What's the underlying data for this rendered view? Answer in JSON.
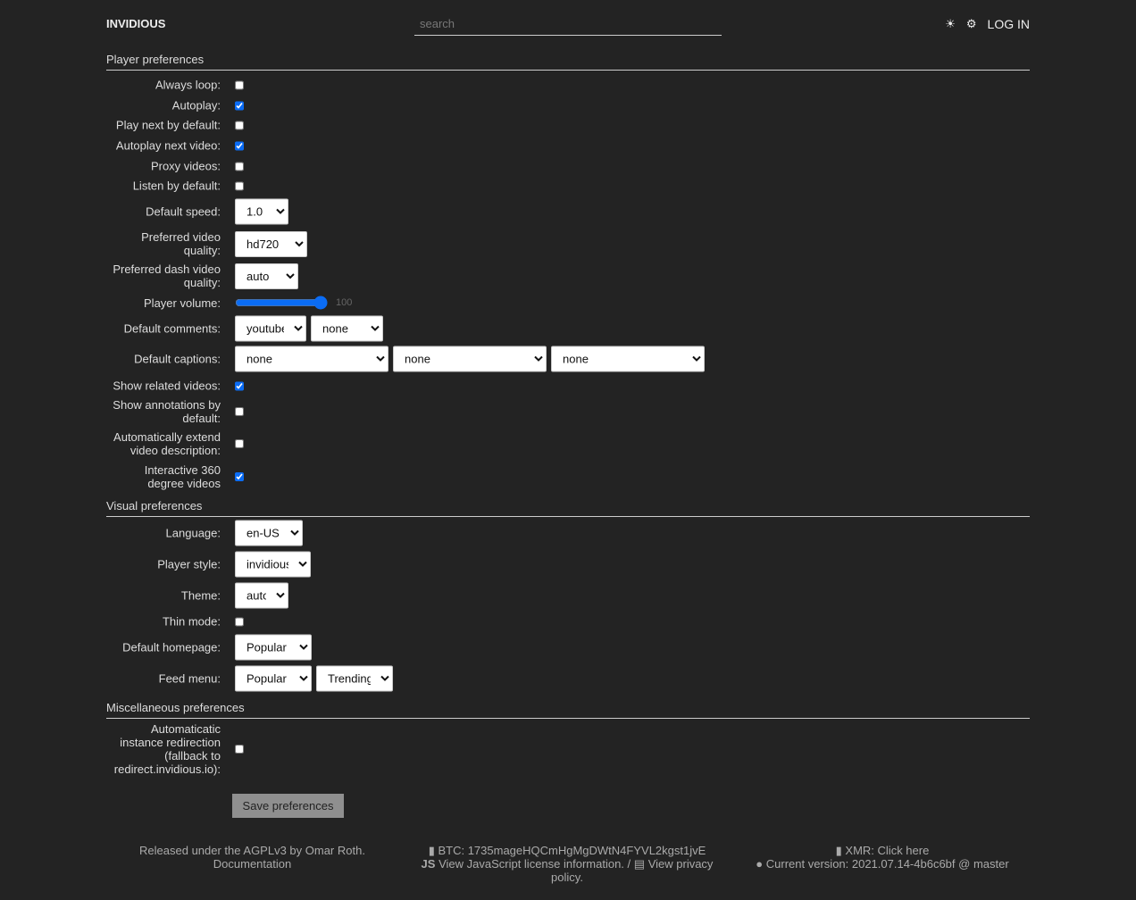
{
  "header": {
    "brand": "INVIDIOUS",
    "search_placeholder": "search",
    "theme_icon": "sun-icon",
    "prefs_icon": "gear-icon",
    "login": "LOG IN"
  },
  "player": {
    "title": "Player preferences",
    "always_loop": {
      "label": "Always loop:",
      "checked": false
    },
    "autoplay": {
      "label": "Autoplay:",
      "checked": true
    },
    "play_next": {
      "label": "Play next by default:",
      "checked": false
    },
    "autoplay_next": {
      "label": "Autoplay next video:",
      "checked": true
    },
    "proxy": {
      "label": "Proxy videos:",
      "checked": false
    },
    "listen": {
      "label": "Listen by default:",
      "checked": false
    },
    "speed": {
      "label": "Default speed:",
      "value": "1.0"
    },
    "quality": {
      "label": "Preferred video quality:",
      "value": "hd720"
    },
    "dash": {
      "label": "Preferred dash video quality:",
      "value": "auto"
    },
    "volume": {
      "label": "Player volume:",
      "value": "100"
    },
    "comments": {
      "label": "Default comments:",
      "values": [
        "youtube",
        "none"
      ]
    },
    "captions": {
      "label": "Default captions:",
      "values": [
        "none",
        "none",
        "none"
      ]
    },
    "related": {
      "label": "Show related videos:",
      "checked": true
    },
    "annotations": {
      "label": "Show annotations by default:",
      "checked": false
    },
    "extend": {
      "label": "Automatically extend video description:",
      "checked": false
    },
    "vr": {
      "label": "Interactive 360 degree videos",
      "checked": true
    }
  },
  "visual": {
    "title": "Visual preferences",
    "language": {
      "label": "Language:",
      "value": "en-US"
    },
    "player_style": {
      "label": "Player style:",
      "value": "invidious"
    },
    "theme": {
      "label": "Theme:",
      "value": "auto"
    },
    "thin": {
      "label": "Thin mode:",
      "checked": false
    },
    "homepage": {
      "label": "Default homepage:",
      "value": "Popular"
    },
    "feed": {
      "label": "Feed menu:",
      "values": [
        "Popular",
        "Trending"
      ]
    }
  },
  "misc": {
    "title": "Miscellaneous preferences",
    "redirect": {
      "label": "Automaticatic instance redirection (fallback to redirect.invidious.io):",
      "checked": false
    }
  },
  "save": "Save preferences",
  "footer": {
    "license": "Released under the AGPLv3 by Omar Roth.",
    "docs": "Documentation",
    "btc": "BTC: 1735mageHQCmHgMgDWtN4FYVL2kgst1jvE",
    "js": "View JavaScript license information.",
    "sep": "/",
    "privacy": "View privacy policy.",
    "xmr": "XMR: Click here",
    "version": "Current version: 2021.07.14-4b6c6bf @ master"
  },
  "colors": {
    "background": "#232323",
    "accent": "#0a6cf5"
  }
}
